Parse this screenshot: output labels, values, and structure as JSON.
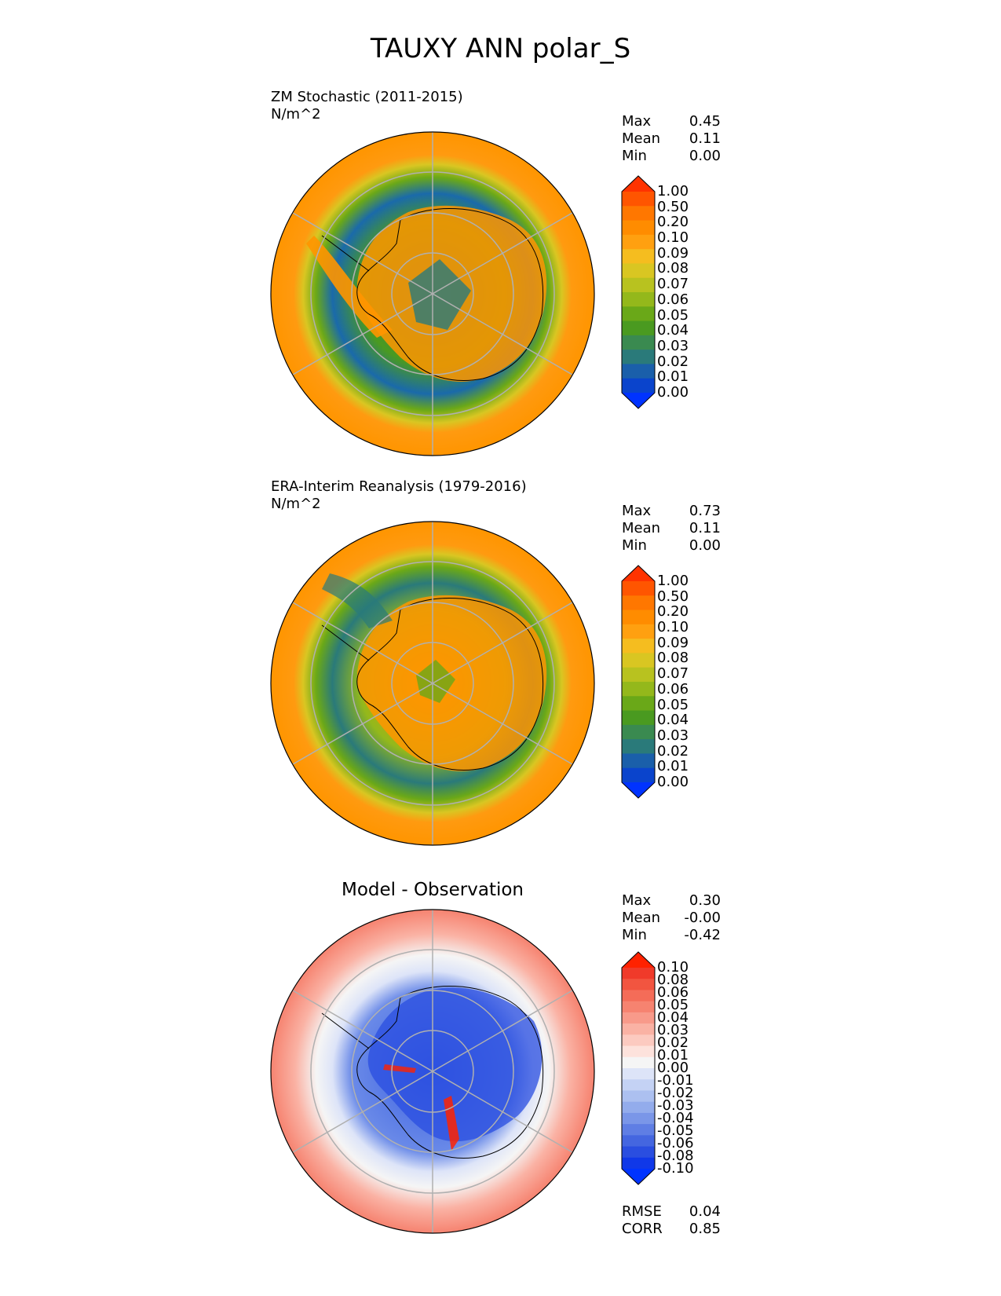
{
  "figure": {
    "title": "TAUXY ANN polar_S"
  },
  "panels": [
    {
      "id": "test",
      "title": "ZM Stochastic (2011-2015)",
      "units": "N/m^2",
      "stats": [
        {
          "label": "Max",
          "value": "0.45"
        },
        {
          "label": "Mean",
          "value": "0.11"
        },
        {
          "label": "Min",
          "value": "0.00"
        }
      ]
    },
    {
      "id": "ref",
      "title": "ERA-Interim Reanalysis (1979-2016)",
      "units": "N/m^2",
      "stats": [
        {
          "label": "Max",
          "value": "0.73"
        },
        {
          "label": "Mean",
          "value": "0.11"
        },
        {
          "label": "Min",
          "value": "0.00"
        }
      ]
    },
    {
      "id": "diff",
      "title": "Model - Observation",
      "units": "",
      "stats": [
        {
          "label": "Max",
          "value": "0.30"
        },
        {
          "label": "Mean",
          "value": "-0.00"
        },
        {
          "label": "Min",
          "value": "-0.42"
        }
      ],
      "metrics": [
        {
          "label": "RMSE",
          "value": "0.04"
        },
        {
          "label": "CORR",
          "value": "0.85"
        }
      ]
    }
  ],
  "colorbars": {
    "magnitude": {
      "ticks": [
        "1.00",
        "0.50",
        "0.20",
        "0.10",
        "0.09",
        "0.08",
        "0.07",
        "0.06",
        "0.05",
        "0.04",
        "0.03",
        "0.02",
        "0.01",
        "0.00"
      ],
      "colors": [
        "#ff3300",
        "#ff5500",
        "#ff7700",
        "#ff8c00",
        "#ffa010",
        "#f5bd1f",
        "#d9c622",
        "#b8c21f",
        "#94b81b",
        "#6aa818",
        "#4a9a20",
        "#3a8a50",
        "#2a7a7a",
        "#1a5faa",
        "#0a44cc",
        "#0033ff"
      ]
    },
    "difference": {
      "ticks": [
        "0.10",
        "0.08",
        "0.06",
        "0.05",
        "0.04",
        "0.03",
        "0.02",
        "0.01",
        "0.00",
        "-0.01",
        "-0.02",
        "-0.03",
        "-0.04",
        "-0.05",
        "-0.06",
        "-0.08",
        "-0.10"
      ],
      "colors": [
        "#ff2200",
        "#f03a2a",
        "#f25540",
        "#f46c58",
        "#f68370",
        "#f89a8a",
        "#fab2a4",
        "#fccac0",
        "#fde2dc",
        "#f5f5f5",
        "#dde4f8",
        "#c4d2f4",
        "#acc0f0",
        "#93acec",
        "#7a96e8",
        "#5f7ee4",
        "#4466e0",
        "#2a4ee0",
        "#1038e8",
        "#0033ff"
      ]
    }
  },
  "chart_data": [
    {
      "type": "heatmap",
      "title": "ZM Stochastic (2011-2015)",
      "units": "N/m^2",
      "projection": "polar_S",
      "max": 0.45,
      "mean": 0.11,
      "min": 0.0,
      "colorbar_levels": [
        0.0,
        0.01,
        0.02,
        0.03,
        0.04,
        0.05,
        0.06,
        0.07,
        0.08,
        0.09,
        0.1,
        0.2,
        0.5,
        1.0
      ]
    },
    {
      "type": "heatmap",
      "title": "ERA-Interim Reanalysis (1979-2016)",
      "units": "N/m^2",
      "projection": "polar_S",
      "max": 0.73,
      "mean": 0.11,
      "min": 0.0,
      "colorbar_levels": [
        0.0,
        0.01,
        0.02,
        0.03,
        0.04,
        0.05,
        0.06,
        0.07,
        0.08,
        0.09,
        0.1,
        0.2,
        0.5,
        1.0
      ]
    },
    {
      "type": "heatmap",
      "title": "Model - Observation",
      "projection": "polar_S",
      "max": 0.3,
      "mean": -0.0,
      "min": -0.42,
      "rmse": 0.04,
      "corr": 0.85,
      "colorbar_levels": [
        -0.1,
        -0.08,
        -0.06,
        -0.05,
        -0.04,
        -0.03,
        -0.02,
        -0.01,
        0.0,
        0.01,
        0.02,
        0.03,
        0.04,
        0.05,
        0.06,
        0.08,
        0.1
      ]
    }
  ]
}
